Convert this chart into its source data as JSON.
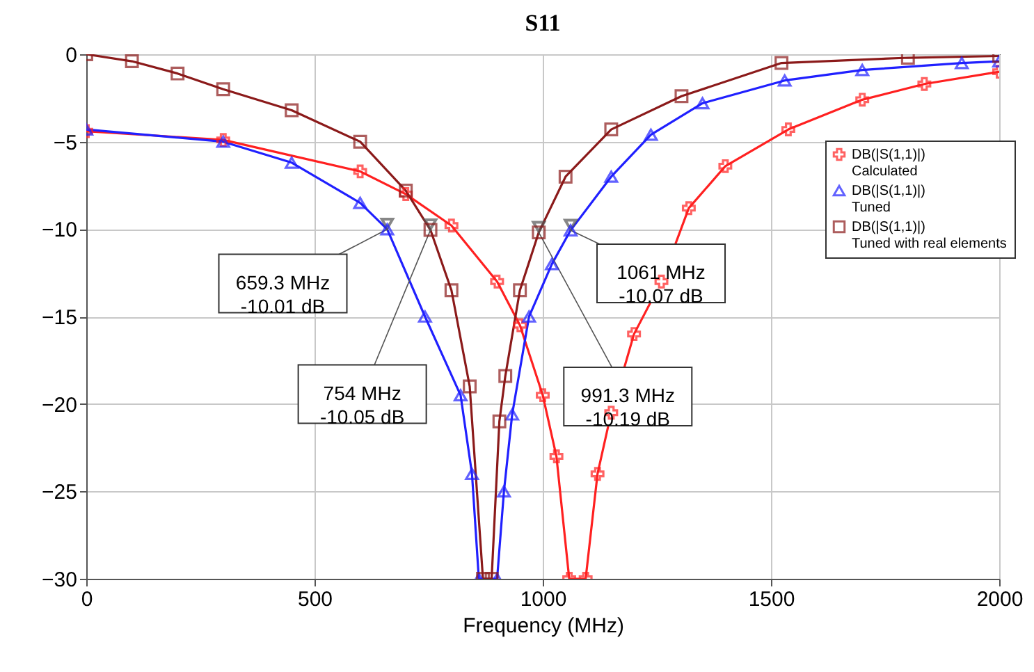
{
  "chart_data": {
    "type": "line",
    "title": "S11",
    "xlabel": "Frequency (MHz)",
    "xlim": [
      0,
      2000
    ],
    "xticks": [
      0,
      500,
      1000,
      1500,
      2000
    ],
    "ylim": [
      -30,
      0
    ],
    "yticks": [
      -30,
      -25,
      -20,
      -15,
      -10,
      -5,
      0
    ],
    "grid": true,
    "legend": "right",
    "series": [
      {
        "name": "DB(|S(1,1)|) Calculated",
        "color": "#ff2020",
        "marker": "cross",
        "x": [
          0,
          300,
          600,
          700,
          800,
          900,
          950,
          1000,
          1030,
          1058,
          1094,
          1120,
          1150,
          1200,
          1260,
          1320,
          1400,
          1538,
          1700,
          1836,
          2000
        ],
        "values": [
          -4.4,
          -4.9,
          -6.7,
          -8,
          -9.8,
          -13,
          -15.5,
          -19.5,
          -23,
          -30,
          -30,
          -24,
          -20.5,
          -16,
          -13,
          -8.8,
          -6.4,
          -4.3,
          -2.6,
          -1.7,
          -1.0
        ]
      },
      {
        "name": "DB(|S(1,1)|) Tuned",
        "color": "#2020ff",
        "marker": "triangle",
        "x": [
          0,
          300,
          450,
          600,
          659.3,
          742,
          820,
          845,
          860,
          900,
          915,
          933,
          970,
          1020,
          1061,
          1150,
          1237,
          1350,
          1530,
          1700,
          1918,
          2000
        ],
        "values": [
          -4.3,
          -5.0,
          -6.2,
          -8.5,
          -10.01,
          -15,
          -19.5,
          -24,
          -30,
          -30,
          -25,
          -20.6,
          -15,
          -12,
          -10.07,
          -7,
          -4.6,
          -2.8,
          -1.5,
          -0.9,
          -0.5,
          -0.4
        ]
      },
      {
        "name": "DB(|S(1,1)|) Tuned with real elements",
        "color": "#8b1a1a",
        "marker": "square",
        "x": [
          0,
          100,
          200,
          300,
          450,
          600,
          700,
          754,
          800,
          840,
          869,
          888,
          905,
          918,
          950,
          991.3,
          1050,
          1150,
          1304,
          1523,
          1800,
          2000
        ],
        "values": [
          0,
          -0.4,
          -1.1,
          -2.0,
          -3.2,
          -5.0,
          -7.8,
          -10.05,
          -13.5,
          -19,
          -30,
          -30,
          -21,
          -18.4,
          -13.5,
          -10.19,
          -7,
          -4.3,
          -2.4,
          -0.5,
          -0.2,
          -0.1
        ]
      }
    ],
    "annotations": [
      {
        "text": "659.3 MHz\n-10.01 dB",
        "x": 659.3,
        "y": -10.01
      },
      {
        "text": "754 MHz\n-10.05 dB",
        "x": 754,
        "y": -10.05
      },
      {
        "text": "991.3 MHz\n-10.19 dB",
        "x": 991.3,
        "y": -10.19
      },
      {
        "text": "1061 MHz\n-10.07 dB",
        "x": 1061,
        "y": -10.07
      }
    ]
  }
}
